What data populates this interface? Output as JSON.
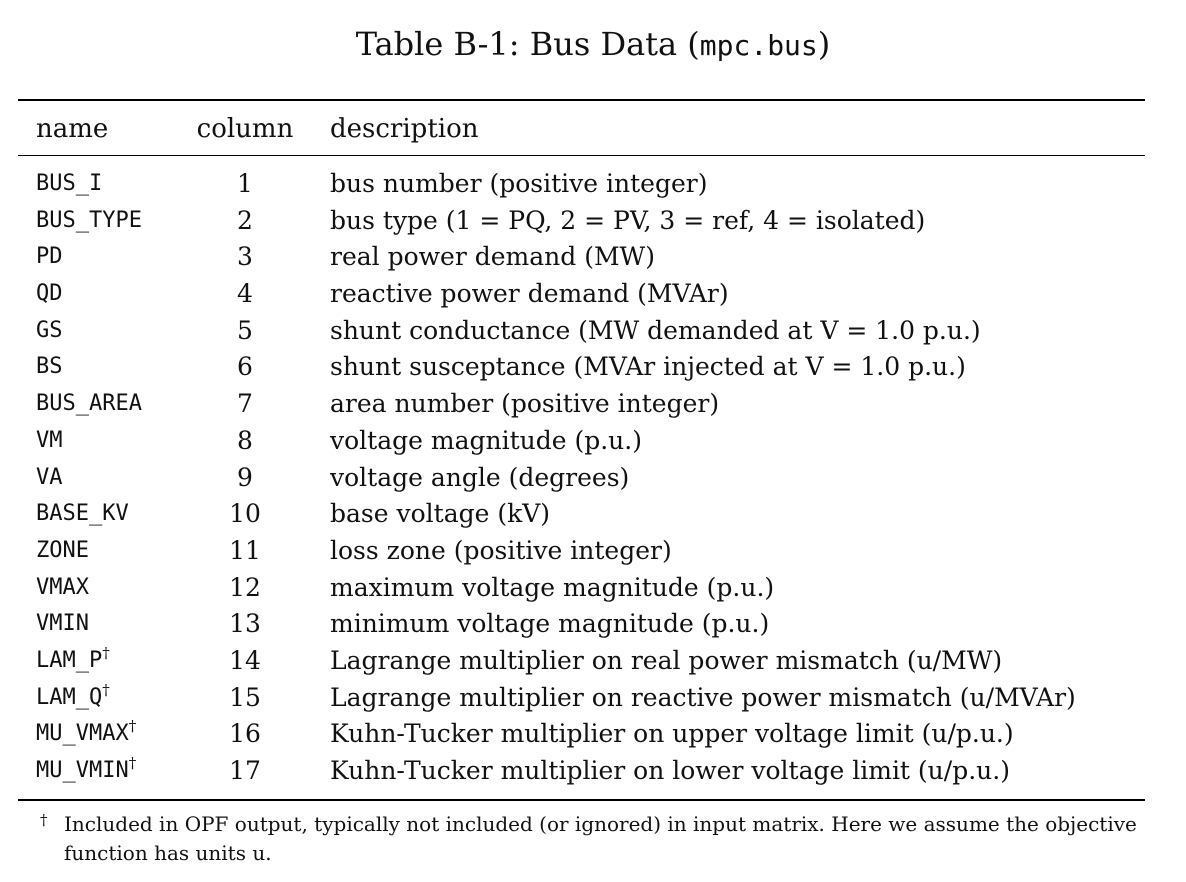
{
  "caption": {
    "prefix": "Table B-1: Bus Data (",
    "code": "mpc.bus",
    "suffix": ")"
  },
  "headers": {
    "name": "name",
    "column": "column",
    "description": "description"
  },
  "rows": [
    {
      "name": "BUS_I",
      "dagger": "",
      "column": "1",
      "description": "bus number (positive integer)"
    },
    {
      "name": "BUS_TYPE",
      "dagger": "",
      "column": "2",
      "description": "bus type (1 = PQ, 2 = PV, 3 = ref, 4 = isolated)"
    },
    {
      "name": "PD",
      "dagger": "",
      "column": "3",
      "description": "real power demand (MW)"
    },
    {
      "name": "QD",
      "dagger": "",
      "column": "4",
      "description": "reactive power demand (MVAr)"
    },
    {
      "name": "GS",
      "dagger": "",
      "column": "5",
      "description": "shunt conductance (MW demanded at V = 1.0 p.u.)"
    },
    {
      "name": "BS",
      "dagger": "",
      "column": "6",
      "description": "shunt susceptance (MVAr injected at V = 1.0 p.u.)"
    },
    {
      "name": "BUS_AREA",
      "dagger": "",
      "column": "7",
      "description": "area number (positive integer)"
    },
    {
      "name": "VM",
      "dagger": "",
      "column": "8",
      "description": "voltage magnitude (p.u.)"
    },
    {
      "name": "VA",
      "dagger": "",
      "column": "9",
      "description": "voltage angle (degrees)"
    },
    {
      "name": "BASE_KV",
      "dagger": "",
      "column": "10",
      "description": "base voltage (kV)"
    },
    {
      "name": "ZONE",
      "dagger": "",
      "column": "11",
      "description": "loss zone (positive integer)"
    },
    {
      "name": "VMAX",
      "dagger": "",
      "column": "12",
      "description": "maximum voltage magnitude (p.u.)"
    },
    {
      "name": "VMIN",
      "dagger": "",
      "column": "13",
      "description": "minimum voltage magnitude (p.u.)"
    },
    {
      "name": "LAM_P",
      "dagger": "†",
      "column": "14",
      "description": "Lagrange multiplier on real power mismatch (u/MW)"
    },
    {
      "name": "LAM_Q",
      "dagger": "†",
      "column": "15",
      "description": "Lagrange multiplier on reactive power mismatch (u/MVAr)"
    },
    {
      "name": "MU_VMAX",
      "dagger": "†",
      "column": "16",
      "description": "Kuhn-Tucker multiplier on upper voltage limit (u/p.u.)"
    },
    {
      "name": "MU_VMIN",
      "dagger": "†",
      "column": "17",
      "description": "Kuhn-Tucker multiplier on lower voltage limit (u/p.u.)"
    }
  ],
  "footnote": {
    "mark": "†",
    "text": "Included in OPF output, typically not included (or ignored) in input matrix. Here we assume the objective function has units u."
  }
}
